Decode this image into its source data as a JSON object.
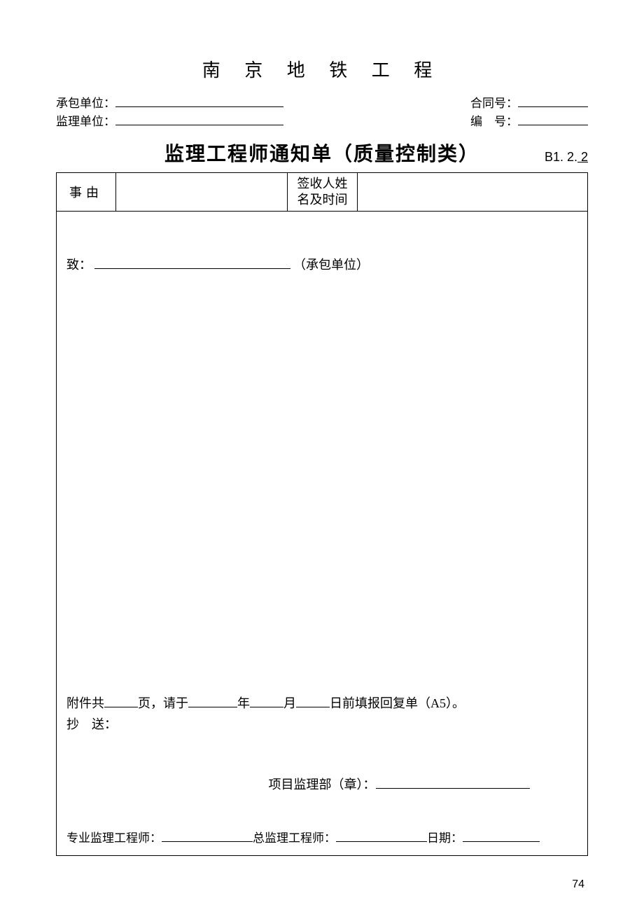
{
  "page": {
    "title": "南 京 地 铁 工 程",
    "number": "74"
  },
  "header": {
    "contractor_label": "承包单位：",
    "supervisor_label": "监理单位：",
    "contract_no_label": "合同号：",
    "serial_no_label": "编　号："
  },
  "form": {
    "title": "监理工程师通知单（质量控制类）",
    "code_prefix": "B1. 2.",
    "code_suffix": " 2"
  },
  "table": {
    "reason_label": "事由",
    "signer_label_line1": "签收人姓",
    "signer_label_line2": "名及时间"
  },
  "body": {
    "to_label": "致：",
    "to_suffix": "（承包单位）",
    "attachment_prefix": "附件共",
    "attachment_unit_page": "页，请于",
    "attachment_unit_year": "年",
    "attachment_unit_month": "月",
    "attachment_unit_day": "日前填报回复单（A5）。",
    "cc_label": "抄　送：",
    "stamp_label": "项目监理部（章）：",
    "specialist_label": "专业监理工程师：",
    "chief_label": "总监理工程师：",
    "date_label": "日期："
  }
}
